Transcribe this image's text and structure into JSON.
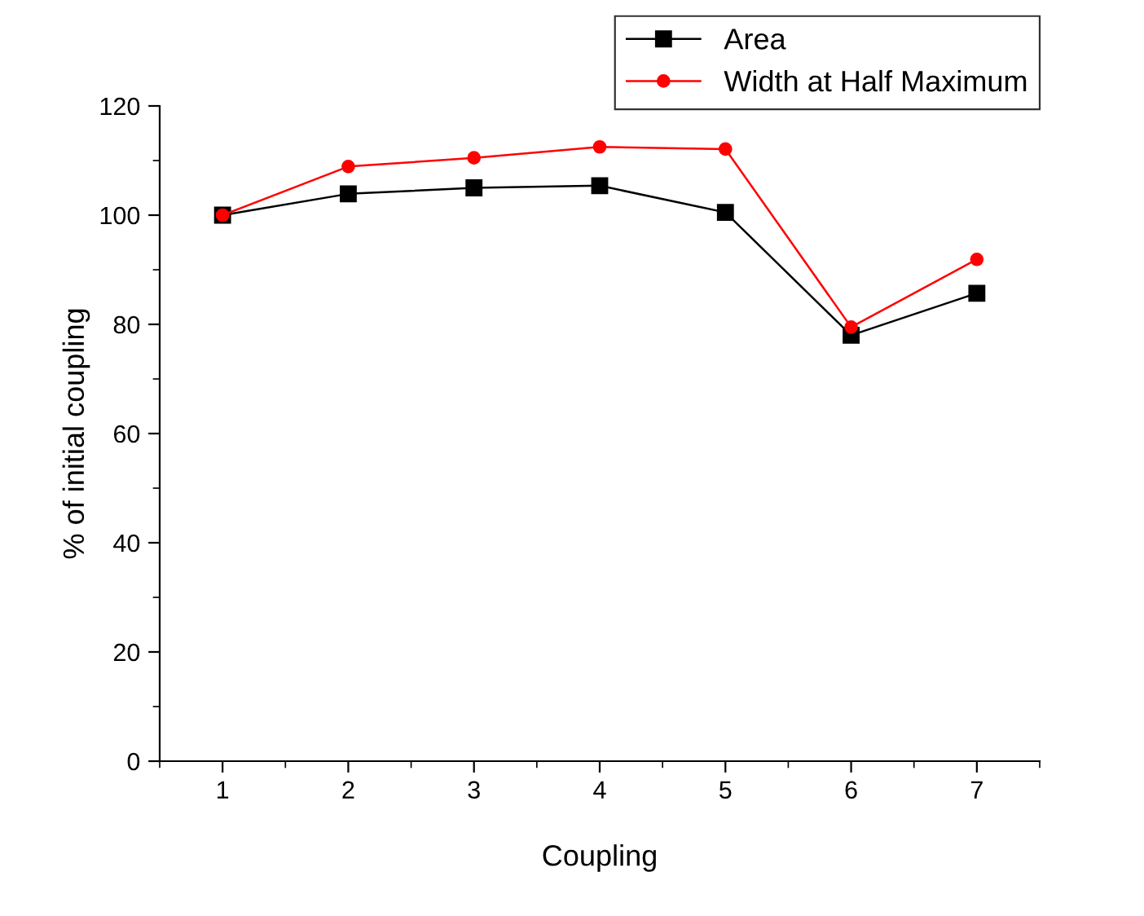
{
  "chart_data": {
    "type": "line",
    "xlabel": "Coupling",
    "ylabel": "% of initial coupling",
    "x": [
      1,
      2,
      3,
      4,
      5,
      6,
      7
    ],
    "xlim": [
      0.5,
      7.5
    ],
    "xticks": [
      1,
      2,
      3,
      4,
      5,
      6,
      7
    ],
    "ylim": [
      0,
      120
    ],
    "yticks": [
      0,
      20,
      40,
      60,
      80,
      100,
      120
    ],
    "grid": false,
    "legend": "top right",
    "series": [
      {
        "name": "Area",
        "color": "#000000",
        "marker": "square",
        "values": [
          100,
          103.9,
          105.0,
          105.4,
          100.5,
          78.0,
          85.7
        ]
      },
      {
        "name": "Width at Half Maximum",
        "color": "#ff0000",
        "marker": "circle",
        "values": [
          100,
          108.9,
          110.5,
          112.5,
          112.1,
          79.5,
          91.9
        ]
      }
    ]
  }
}
